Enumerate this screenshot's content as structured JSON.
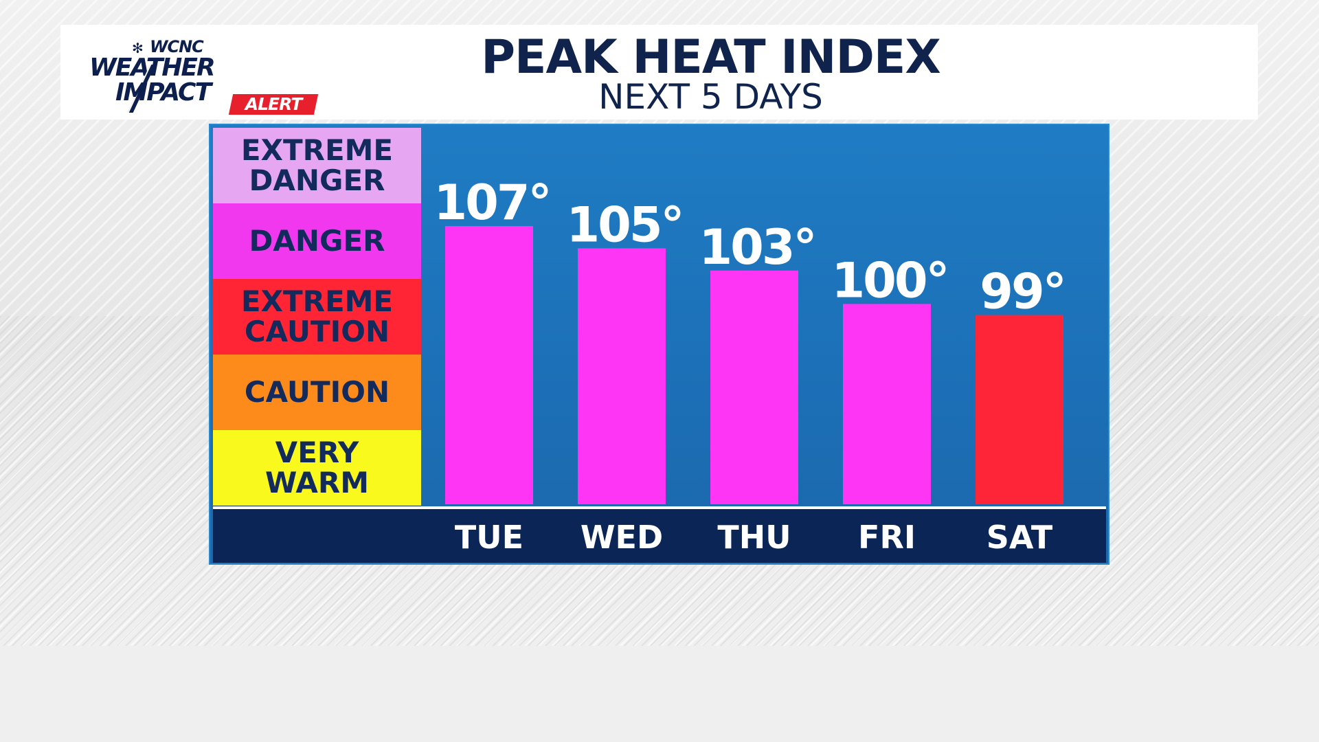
{
  "branding": {
    "station": "WCNC",
    "line1": "WEATHER",
    "line2": "IMPACT",
    "alert_tag": "ALERT"
  },
  "header": {
    "title": "PEAK HEAT INDEX",
    "subtitle": "NEXT 5 DAYS"
  },
  "legend": [
    {
      "label": "EXTREME\nDANGER",
      "color": "#e7a6f2"
    },
    {
      "label": "DANGER",
      "color": "#f238ee"
    },
    {
      "label": "EXTREME\nCAUTION",
      "color": "#ff2535"
    },
    {
      "label": "CAUTION",
      "color": "#fc8b1c"
    },
    {
      "label": "VERY\nWARM",
      "color": "#f9f91d"
    }
  ],
  "colors": {
    "panel_background": "#1d72b8",
    "axis_band": "#0a2556",
    "title_text": "#0f234d",
    "danger_bar": "#ff35f6",
    "extreme_caution_bar": "#ff2539"
  },
  "chart_data": {
    "type": "bar",
    "title": "PEAK HEAT INDEX",
    "subtitle": "NEXT 5 DAYS",
    "categories": [
      "TUE",
      "WED",
      "THU",
      "FRI",
      "SAT"
    ],
    "values": [
      107,
      105,
      103,
      100,
      99
    ],
    "value_labels": [
      "107°",
      "105°",
      "103°",
      "100°",
      "99°"
    ],
    "bar_colors": [
      "#ff35f6",
      "#ff35f6",
      "#ff35f6",
      "#ff35f6",
      "#ff2539"
    ],
    "unit": "°F",
    "grid": false,
    "legend_position": "left"
  }
}
